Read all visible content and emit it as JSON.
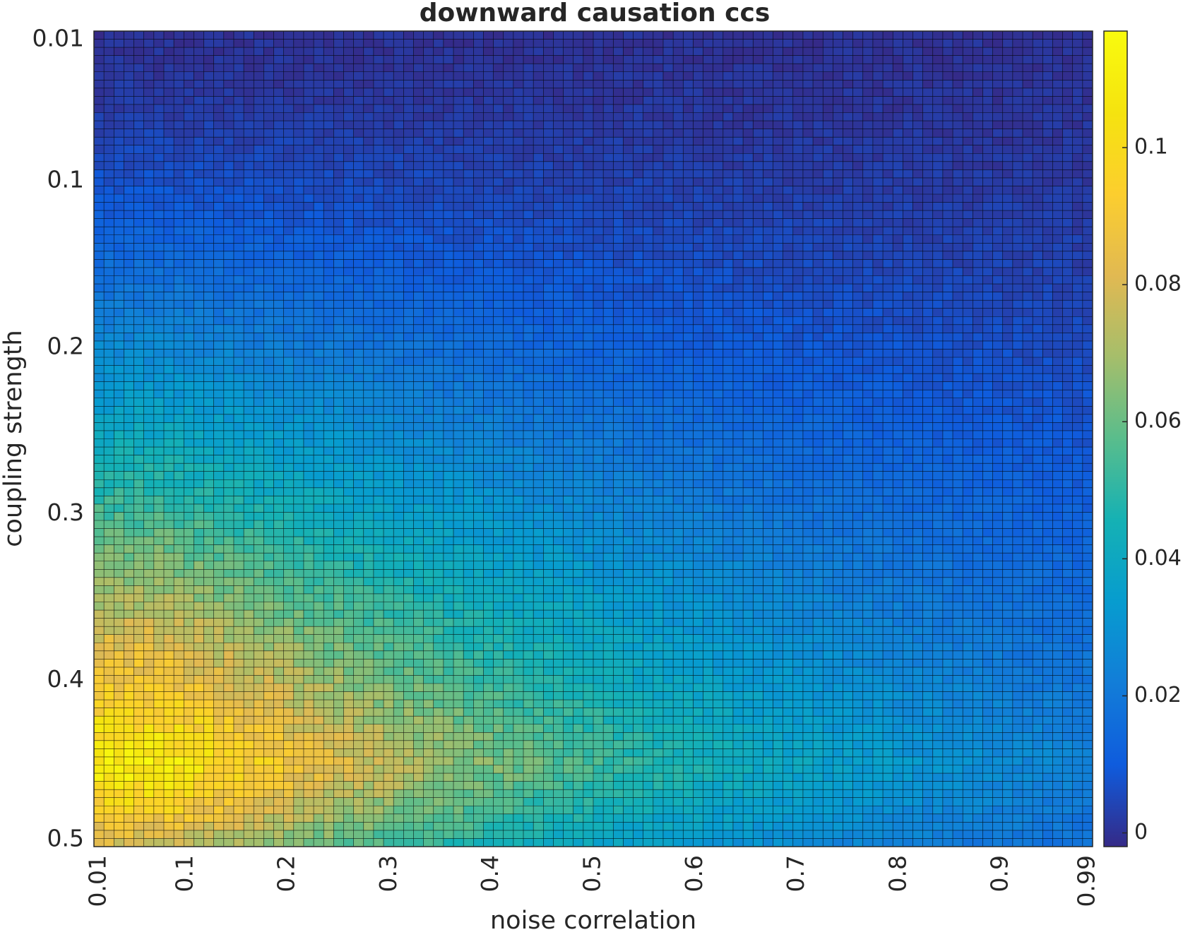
{
  "chart_data": {
    "type": "heatmap",
    "title": "downward causation ccs",
    "xlabel": "noise correlation",
    "ylabel": "coupling strength",
    "x_range": [
      0.01,
      0.99
    ],
    "y_range": [
      0.01,
      0.5
    ],
    "x_tick_labels": [
      "0.01",
      "0.1",
      "0.2",
      "0.3",
      "0.4",
      "0.5",
      "0.6",
      "0.7",
      "0.8",
      "0.9",
      "0.99"
    ],
    "y_tick_labels": [
      "0.01",
      "0.1",
      "0.2",
      "0.3",
      "0.4",
      "0.5"
    ],
    "grid_columns": 100,
    "grid_rows": 100,
    "y_axis_direction": "top-to-bottom",
    "value_description": "downward causation ccs, highest (~0.11) near noise correlation 0.01-0.15 and coupling strength 0.40-0.47, falling toward ~0 at low coupling strength and at high noise correlation",
    "peak": {
      "x": 0.05,
      "y": 0.45,
      "value": 0.112
    },
    "sample_values": [
      {
        "x": 0.01,
        "y": 0.01,
        "value": 0.0
      },
      {
        "x": 0.5,
        "y": 0.01,
        "value": 0.0
      },
      {
        "x": 0.99,
        "y": 0.01,
        "value": 0.0
      },
      {
        "x": 0.01,
        "y": 0.1,
        "value": 0.008
      },
      {
        "x": 0.01,
        "y": 0.2,
        "value": 0.03
      },
      {
        "x": 0.01,
        "y": 0.3,
        "value": 0.065
      },
      {
        "x": 0.01,
        "y": 0.35,
        "value": 0.083
      },
      {
        "x": 0.01,
        "y": 0.4,
        "value": 0.1
      },
      {
        "x": 0.01,
        "y": 0.45,
        "value": 0.11
      },
      {
        "x": 0.01,
        "y": 0.49,
        "value": 0.08
      },
      {
        "x": 0.2,
        "y": 0.42,
        "value": 0.09
      },
      {
        "x": 0.3,
        "y": 0.42,
        "value": 0.075
      },
      {
        "x": 0.4,
        "y": 0.4,
        "value": 0.06
      },
      {
        "x": 0.5,
        "y": 0.4,
        "value": 0.05
      },
      {
        "x": 0.6,
        "y": 0.4,
        "value": 0.04
      },
      {
        "x": 0.7,
        "y": 0.4,
        "value": 0.03
      },
      {
        "x": 0.8,
        "y": 0.4,
        "value": 0.02
      },
      {
        "x": 0.9,
        "y": 0.4,
        "value": 0.01
      },
      {
        "x": 0.99,
        "y": 0.4,
        "value": 0.004
      },
      {
        "x": 0.5,
        "y": 0.2,
        "value": 0.012
      },
      {
        "x": 0.99,
        "y": 0.2,
        "value": 0.0
      }
    ],
    "colorbar": {
      "colormap": "parula",
      "range": [
        -0.002,
        0.117
      ],
      "ticks": [
        0,
        0.02,
        0.04,
        0.06,
        0.08,
        0.1
      ],
      "tick_labels": [
        "0",
        "0.02",
        "0.04",
        "0.06",
        "0.08",
        "0.1"
      ]
    },
    "grid": true,
    "cell_edge_color": "#000000"
  }
}
